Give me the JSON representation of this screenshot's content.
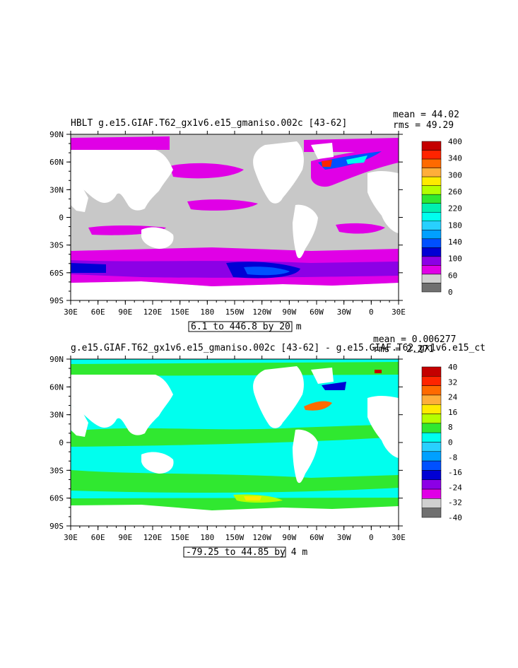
{
  "chart_data": [
    {
      "type": "heatmap",
      "title": "HBLT g.e15.GIAF.T62_gx1v6.e15_gmaniso.002c [43-62]",
      "stats": {
        "mean": "mean = 44.02",
        "rms": "rms = 49.29"
      },
      "range_label": "6.1 to 446.8 by 20 m",
      "x_ticks": [
        "30E",
        "60E",
        "90E",
        "120E",
        "150E",
        "180",
        "150W",
        "120W",
        "90W",
        "60W",
        "30W",
        "0",
        "30E"
      ],
      "y_ticks": [
        "90N",
        "60N",
        "30N",
        "0",
        "30S",
        "60S",
        "90S"
      ],
      "colorbar": {
        "labels": [
          "400",
          "340",
          "300",
          "260",
          "220",
          "180",
          "140",
          "100",
          "60",
          "0"
        ],
        "colors": [
          "#c40000",
          "#ff2400",
          "#ff6a00",
          "#ffae3a",
          "#ffea00",
          "#b4ff00",
          "#30e830",
          "#00f0b0",
          "#00ffee",
          "#28d0ff",
          "#00a0ff",
          "#0050ff",
          "#0000d4",
          "#8c00e6",
          "#e000e6",
          "#d0d0d0",
          "#707070"
        ]
      }
    },
    {
      "type": "heatmap",
      "title": "g.e15.GIAF.T62_gx1v6.e15_gmaniso.002c [43-62] - g.e15.GIAF.T62_gx1v6.e15_ct",
      "stats": {
        "mean": "mean = 0.006277",
        "rms": "rms = 2.271"
      },
      "range_label": "-79.25 to 44.85 by 4 m",
      "x_ticks": [
        "30E",
        "60E",
        "90E",
        "120E",
        "150E",
        "180",
        "150W",
        "120W",
        "90W",
        "60W",
        "30W",
        "0",
        "30E"
      ],
      "y_ticks": [
        "90N",
        "60N",
        "30N",
        "0",
        "30S",
        "60S",
        "90S"
      ],
      "colorbar": {
        "labels": [
          "40",
          "32",
          "24",
          "16",
          "8",
          "0",
          "-8",
          "-16",
          "-24",
          "-32",
          "-40"
        ],
        "colors": [
          "#c40000",
          "#ff2400",
          "#ff6a00",
          "#ffae3a",
          "#ffea00",
          "#b4ff00",
          "#30e830",
          "#00ffee",
          "#28d0ff",
          "#00a0ff",
          "#0050ff",
          "#0000d4",
          "#8c00e6",
          "#e000e6",
          "#d0d0d0",
          "#707070"
        ]
      }
    }
  ]
}
